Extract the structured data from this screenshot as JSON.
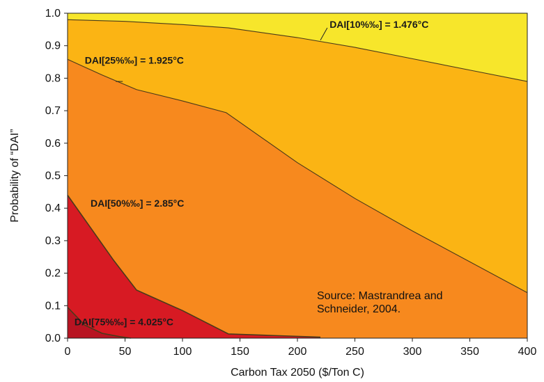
{
  "chart_data": {
    "type": "area",
    "xlabel": "Carbon Tax 2050 ($/Ton C)",
    "ylabel": "Probability of “DAI”",
    "xlim": [
      0,
      400
    ],
    "ylim": [
      0,
      1.0
    ],
    "xticks": [
      "0",
      "50",
      "100",
      "150",
      "200",
      "250",
      "300",
      "350",
      "400"
    ],
    "yticks": [
      "0.0",
      "0.1",
      "0.2",
      "0.3",
      "0.4",
      "0.5",
      "0.6",
      "0.7",
      "0.8",
      "0.9",
      "1.0"
    ],
    "grid": false,
    "series": [
      {
        "color": "#F7E62B",
        "label": "DAI[10%‰] = 1.476°C",
        "points": [
          {
            "x": 0,
            "y": 1.0
          },
          {
            "x": 400,
            "y": 1.0
          }
        ]
      },
      {
        "color": "#FBB414",
        "label": "DAI[10%‰] = 1.476°C",
        "points": [
          {
            "x": 0,
            "y": 0.98
          },
          {
            "x": 50,
            "y": 0.975
          },
          {
            "x": 100,
            "y": 0.965
          },
          {
            "x": 140,
            "y": 0.955
          },
          {
            "x": 200,
            "y": 0.925
          },
          {
            "x": 250,
            "y": 0.895
          },
          {
            "x": 300,
            "y": 0.86
          },
          {
            "x": 350,
            "y": 0.825
          },
          {
            "x": 400,
            "y": 0.79
          }
        ]
      },
      {
        "color": "#F7891E",
        "label": "DAI[25%‰] = 1.925°C",
        "points": [
          {
            "x": 0,
            "y": 0.858
          },
          {
            "x": 30,
            "y": 0.81
          },
          {
            "x": 60,
            "y": 0.765
          },
          {
            "x": 100,
            "y": 0.73
          },
          {
            "x": 138,
            "y": 0.694
          },
          {
            "x": 200,
            "y": 0.54
          },
          {
            "x": 250,
            "y": 0.43
          },
          {
            "x": 300,
            "y": 0.33
          },
          {
            "x": 350,
            "y": 0.235
          },
          {
            "x": 400,
            "y": 0.14
          }
        ]
      },
      {
        "color": "#D71A23",
        "label": "DAI[50%‰] = 2.85°C",
        "points": [
          {
            "x": 0,
            "y": 0.44
          },
          {
            "x": 20,
            "y": 0.34
          },
          {
            "x": 40,
            "y": 0.24
          },
          {
            "x": 60,
            "y": 0.148
          },
          {
            "x": 100,
            "y": 0.085
          },
          {
            "x": 140,
            "y": 0.013
          },
          {
            "x": 180,
            "y": 0.008
          },
          {
            "x": 220,
            "y": 0.003
          }
        ]
      },
      {
        "color": "#B81422",
        "label": "DAI[75%‰] = 4.025°C",
        "points": [
          {
            "x": 0,
            "y": 0.095
          },
          {
            "x": 15,
            "y": 0.04
          },
          {
            "x": 30,
            "y": 0.015
          },
          {
            "x": 45,
            "y": 0.005
          },
          {
            "x": 55,
            "y": 0.0
          }
        ]
      }
    ],
    "annotations": [
      {
        "text": "DAI[10%‰] = 1.476°C",
        "x": 228,
        "y": 0.955,
        "anchor": "start"
      },
      {
        "text": "DAI[25%‰] = 1.925°C",
        "x": 15,
        "y": 0.845,
        "anchor": "start"
      },
      {
        "text": "DAI[50%‰] = 2.85°C",
        "x": 20,
        "y": 0.405,
        "anchor": "start"
      },
      {
        "text": "DAI[75%‰] = 4.025°C",
        "x": 6,
        "y": 0.04,
        "anchor": "start"
      }
    ],
    "leaders": [
      {
        "x1": 226,
        "y1": 0.955,
        "x2": 220,
        "y2": 0.917
      },
      {
        "x1": 48,
        "y1": 0.79,
        "x2": 42,
        "y2": 0.79
      }
    ]
  },
  "source_note": "Source: Mastrandrea and Schneider, 2004."
}
